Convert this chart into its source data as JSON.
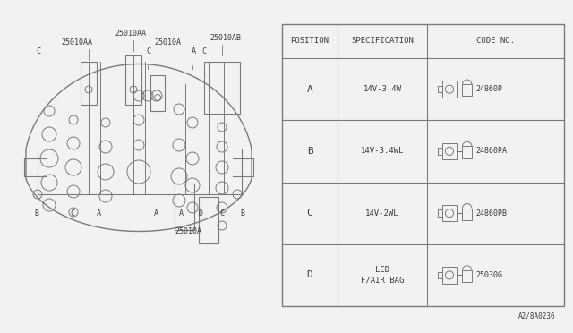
{
  "bg_color": "#f2f2f2",
  "line_color": "#7a7a7a",
  "text_color": "#3a3a3a",
  "rows": [
    {
      "pos": "A",
      "spec": "14V-3.4W",
      "code": "24860P"
    },
    {
      "pos": "B",
      "spec": "14V-3.4WL",
      "code": "24860PA"
    },
    {
      "pos": "C",
      "spec": "14V-2WL",
      "code": "24860PB"
    },
    {
      "pos": "D",
      "spec": "LED\nF/AIR BAG",
      "code": "25030G"
    }
  ],
  "col_headers": [
    "POSITION",
    "SPECIFICATION",
    "CODE NO."
  ],
  "footer_text": "A2/8A0236"
}
